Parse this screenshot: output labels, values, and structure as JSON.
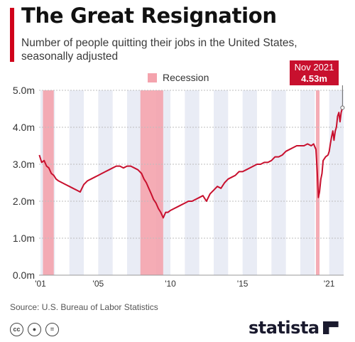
{
  "header": {
    "title": "The Great Resignation",
    "subtitle": "Number of people quitting their jobs in the United States, seasonally adjusted"
  },
  "legend": {
    "recession_label": "Recession"
  },
  "callout": {
    "date": "Nov 2021",
    "value": "4.53m"
  },
  "footer": {
    "source": "Source: U.S. Bureau of Labor Statistics",
    "brand": "statista",
    "license_icons": [
      "cc-icon",
      "by-icon",
      "nd-icon"
    ]
  },
  "colors": {
    "line": "#c8102e",
    "recession": "#f4a3ad",
    "stripe": "#e9ecf5",
    "accent": "#d0021b"
  },
  "chart_data": {
    "type": "line",
    "xlim": [
      2000.9,
      2022.0
    ],
    "ylim": [
      0,
      5
    ],
    "y_ticks": [
      {
        "value": 0,
        "label": "0.0m"
      },
      {
        "value": 1,
        "label": "1.0m"
      },
      {
        "value": 2,
        "label": "2.0m"
      },
      {
        "value": 3,
        "label": "3.0m"
      },
      {
        "value": 4,
        "label": "4.0m"
      },
      {
        "value": 5,
        "label": "5.0m"
      }
    ],
    "x_ticks": [
      {
        "value": 2001,
        "label": "'01"
      },
      {
        "value": 2005,
        "label": "'05"
      },
      {
        "value": 2010,
        "label": "'10"
      },
      {
        "value": 2015,
        "label": "'15"
      },
      {
        "value": 2021,
        "label": "'21"
      }
    ],
    "recessions": [
      {
        "start": 2001.17,
        "end": 2001.92
      },
      {
        "start": 2007.92,
        "end": 2009.5
      },
      {
        "start": 2020.08,
        "end": 2020.33
      }
    ],
    "series": [
      {
        "x": [
          2000.92,
          2001.08,
          2001.25,
          2001.42,
          2001.58,
          2001.75,
          2001.92,
          2002.08,
          2002.25,
          2002.5,
          2002.75,
          2003.0,
          2003.25,
          2003.5,
          2003.75,
          2004.0,
          2004.25,
          2004.5,
          2004.75,
          2005.0,
          2005.25,
          2005.5,
          2005.75,
          2006.0,
          2006.25,
          2006.5,
          2006.75,
          2007.0,
          2007.25,
          2007.5,
          2007.75,
          2008.0,
          2008.17,
          2008.33,
          2008.5,
          2008.67,
          2008.83,
          2009.0,
          2009.17,
          2009.33,
          2009.5,
          2009.67,
          2009.83,
          2010.0,
          2010.25,
          2010.5,
          2010.75,
          2011.0,
          2011.25,
          2011.5,
          2011.75,
          2012.0,
          2012.25,
          2012.5,
          2012.75,
          2013.0,
          2013.25,
          2013.5,
          2013.75,
          2014.0,
          2014.25,
          2014.5,
          2014.75,
          2015.0,
          2015.25,
          2015.5,
          2015.75,
          2016.0,
          2016.25,
          2016.5,
          2016.75,
          2017.0,
          2017.25,
          2017.5,
          2017.75,
          2018.0,
          2018.25,
          2018.5,
          2018.75,
          2019.0,
          2019.25,
          2019.5,
          2019.75,
          2019.92,
          2020.08,
          2020.17,
          2020.25,
          2020.33,
          2020.42,
          2020.5,
          2020.58,
          2020.75,
          2020.92,
          2021.0,
          2021.08,
          2021.17,
          2021.25,
          2021.33,
          2021.42,
          2021.5,
          2021.58,
          2021.67,
          2021.75,
          2021.83,
          2021.92
        ],
        "y": [
          3.25,
          3.05,
          3.1,
          2.95,
          2.9,
          2.75,
          2.7,
          2.6,
          2.55,
          2.5,
          2.45,
          2.4,
          2.35,
          2.3,
          2.25,
          2.45,
          2.55,
          2.6,
          2.65,
          2.7,
          2.75,
          2.8,
          2.85,
          2.9,
          2.95,
          2.95,
          2.9,
          2.95,
          2.95,
          2.9,
          2.85,
          2.75,
          2.6,
          2.5,
          2.35,
          2.2,
          2.05,
          1.95,
          1.8,
          1.7,
          1.55,
          1.7,
          1.7,
          1.75,
          1.8,
          1.85,
          1.9,
          1.95,
          2.0,
          2.0,
          2.05,
          2.1,
          2.15,
          2.0,
          2.2,
          2.3,
          2.4,
          2.35,
          2.5,
          2.6,
          2.65,
          2.7,
          2.8,
          2.8,
          2.85,
          2.9,
          2.95,
          3.0,
          3.0,
          3.05,
          3.05,
          3.1,
          3.2,
          3.2,
          3.25,
          3.35,
          3.4,
          3.45,
          3.5,
          3.5,
          3.5,
          3.55,
          3.5,
          3.55,
          3.4,
          2.8,
          2.1,
          2.25,
          2.6,
          2.75,
          3.1,
          3.2,
          3.25,
          3.35,
          3.55,
          3.75,
          3.9,
          3.65,
          3.9,
          4.0,
          4.3,
          4.4,
          4.15,
          4.4,
          4.53
        ]
      }
    ]
  }
}
